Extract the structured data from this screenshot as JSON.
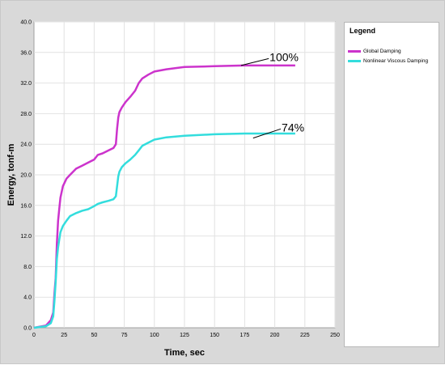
{
  "legend": {
    "title": "Legend",
    "items": [
      {
        "label": "Global Damping",
        "color": "#cc33cc"
      },
      {
        "label": "Nonlinear Viscous Damping",
        "color": "#33dddd"
      }
    ]
  },
  "chart_data": {
    "type": "line",
    "xlabel": "Time, sec",
    "ylabel": "Energy, tonf-m",
    "xlim": [
      0,
      250
    ],
    "ylim": [
      0,
      40
    ],
    "xticks": [
      0,
      25,
      50,
      75,
      100,
      125,
      150,
      175,
      200,
      225,
      250
    ],
    "yticks": [
      0.0,
      4.0,
      8.0,
      12.0,
      16.0,
      20.0,
      24.0,
      28.0,
      32.0,
      36.0,
      40.0
    ],
    "grid": true,
    "legend_position": "right",
    "series": [
      {
        "name": "Global Damping",
        "color": "#cc33cc",
        "x": [
          0,
          10,
          14,
          16,
          17,
          18,
          19,
          20,
          21,
          22,
          24,
          27,
          30,
          35,
          40,
          45,
          50,
          53,
          57,
          62,
          66,
          68,
          69,
          70,
          71,
          73,
          76,
          80,
          84,
          87,
          90,
          95,
          100,
          110,
          125,
          150,
          175,
          200,
          217
        ],
        "y": [
          0,
          0.3,
          1.0,
          2.0,
          4.5,
          6.5,
          11.0,
          14.0,
          15.5,
          17.0,
          18.5,
          19.5,
          20.0,
          20.8,
          21.2,
          21.6,
          22.0,
          22.6,
          22.8,
          23.2,
          23.5,
          24.0,
          26.0,
          27.5,
          28.2,
          28.8,
          29.5,
          30.2,
          31.0,
          32.0,
          32.6,
          33.1,
          33.5,
          33.8,
          34.1,
          34.2,
          34.3,
          34.3,
          34.3
        ]
      },
      {
        "name": "Nonlinear Viscous Damping",
        "color": "#33dddd",
        "x": [
          0,
          10,
          14,
          16,
          17,
          18,
          19,
          20,
          21,
          22,
          24,
          27,
          30,
          35,
          40,
          45,
          50,
          53,
          57,
          62,
          66,
          68,
          69,
          70,
          71,
          73,
          76,
          80,
          84,
          87,
          90,
          95,
          100,
          110,
          125,
          150,
          175,
          200,
          217
        ],
        "y": [
          0,
          0.2,
          0.6,
          1.5,
          3.5,
          6.0,
          9.0,
          10.5,
          11.5,
          12.5,
          13.3,
          14.0,
          14.6,
          15.0,
          15.3,
          15.5,
          15.9,
          16.2,
          16.4,
          16.6,
          16.8,
          17.2,
          18.5,
          19.8,
          20.4,
          21.0,
          21.5,
          22.0,
          22.6,
          23.2,
          23.8,
          24.2,
          24.6,
          24.9,
          25.1,
          25.3,
          25.4,
          25.4,
          25.4
        ]
      }
    ],
    "annotations": [
      {
        "text": "100%",
        "x_from": 172,
        "y_from": 34.3,
        "x_to": 195,
        "y_to": 35.2
      },
      {
        "text": "74%",
        "x_from": 182,
        "y_from": 24.8,
        "x_to": 205,
        "y_to": 26.0
      }
    ]
  }
}
